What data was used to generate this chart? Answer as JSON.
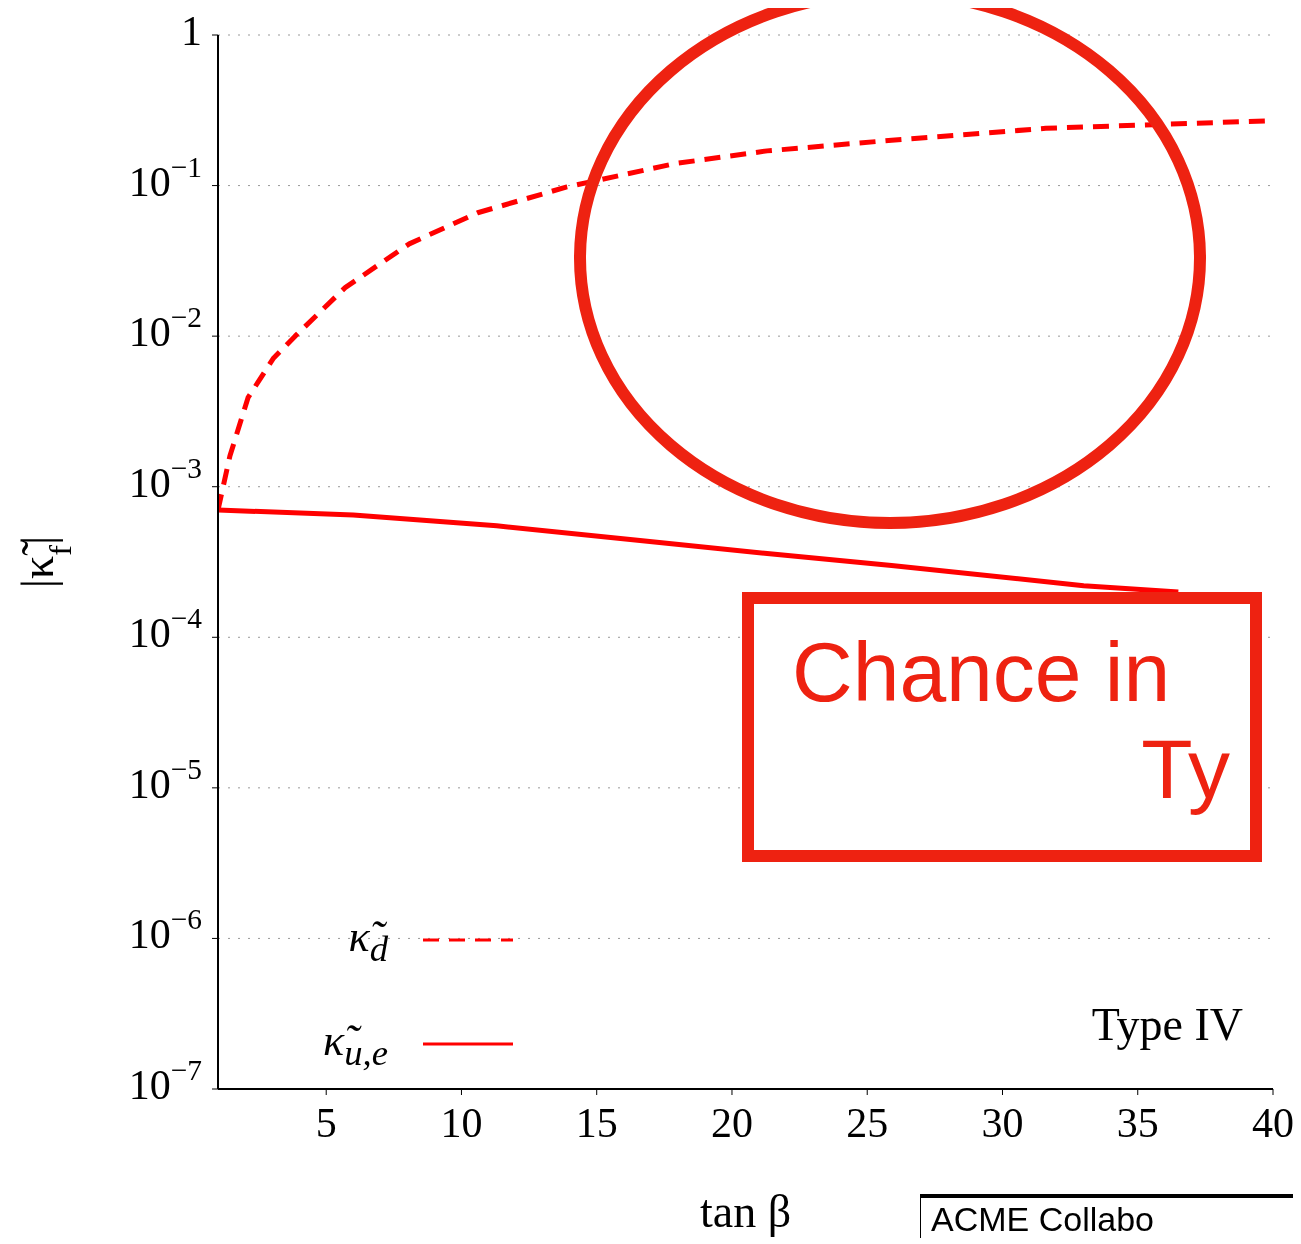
{
  "chart_data": {
    "type": "line",
    "xlabel": "tan β",
    "ylabel": "|κ̃$_{f}$|",
    "xlim": [
      1,
      40
    ],
    "xticks": [
      5,
      10,
      15,
      20,
      25,
      30,
      35,
      40
    ],
    "ylim": [
      1e-07,
      1
    ],
    "yticks": [
      {
        "value": 1e-07,
        "label": "10$^{−7}$"
      },
      {
        "value": 1e-06,
        "label": "10$^{−6}$"
      },
      {
        "value": 1e-05,
        "label": "10$^{−5}$"
      },
      {
        "value": 0.0001,
        "label": "10$^{−4}$"
      },
      {
        "value": 0.001,
        "label": "10$^{−3}$"
      },
      {
        "value": 0.01,
        "label": "10$^{−2}$"
      },
      {
        "value": 0.1,
        "label": "10$^{−1}$"
      },
      1
    ],
    "log": "y",
    "grid": "y",
    "legend": "bottom left",
    "marker": "none",
    "series": [
      {
        "name": "κ̃$_{d}$",
        "color": "#ff0000",
        "line_style": "dashed",
        "x": [
          1,
          1.44,
          2.11,
          3.04,
          3.85,
          5.7,
          8.07,
          10.6,
          13.9,
          17.9,
          21.3,
          25.9,
          31.6,
          40
        ],
        "values": [
          0.0007,
          0.0016,
          0.0039,
          0.0071,
          0.01,
          0.021,
          0.041,
          0.066,
          0.098,
          0.14,
          0.17,
          0.2,
          0.24,
          0.27
        ]
      },
      {
        "name": "κ̃$_{u,e}$",
        "color": "#ff0000",
        "line_style": "solid",
        "x": [
          1,
          6,
          11.3,
          16.6,
          21.3,
          25.9,
          33,
          36.5
        ],
        "values": [
          0.0007,
          0.00065,
          0.00055,
          0.00044,
          0.00036,
          0.0003,
          0.00022,
          0.0002
        ]
      }
    ],
    "annotations": [
      "Type IV",
      "Chance in",
      "Ty",
      "ACME Collabo"
    ]
  }
}
